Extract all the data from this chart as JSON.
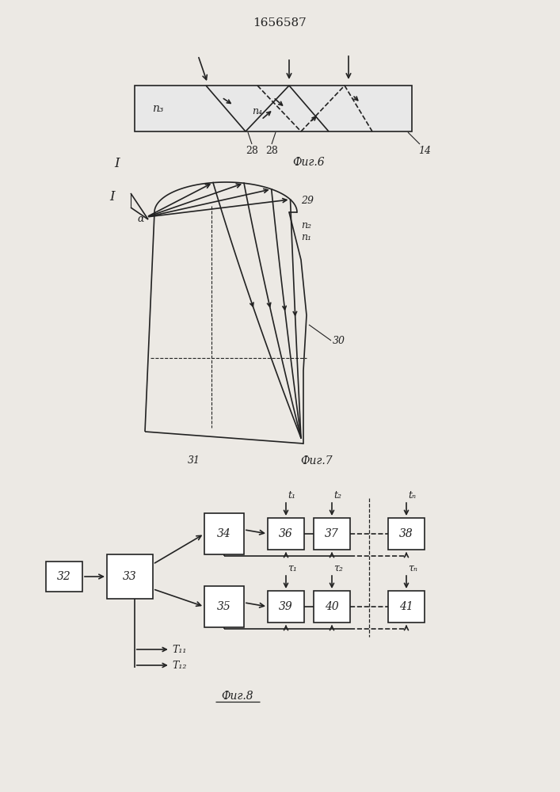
{
  "title": "1656587",
  "bg_color": "#ece9e4",
  "fig6_label": "Фиг.6",
  "fig7_label": "Фиг.7",
  "fig8_label": "Фиг.8",
  "labels": {
    "n3": "n₃",
    "n4": "n₄",
    "28a": "28",
    "28b": "28",
    "14": "14",
    "I": "I",
    "alpha": "α",
    "29": "29",
    "n2": "n₂",
    "n1": "n₁",
    "30": "30",
    "31": "31",
    "32": "32",
    "33": "33",
    "34": "34",
    "35": "35",
    "36": "36",
    "37": "37",
    "38": "38",
    "39": "39",
    "40": "40",
    "41": "41",
    "T11": "T₁₁",
    "T12": "T₁₂",
    "t1": "t₁",
    "t2": "t₂",
    "tn": "tₙ",
    "r1": "τ₁",
    "r2": "τ₂",
    "rn": "τₙ"
  }
}
